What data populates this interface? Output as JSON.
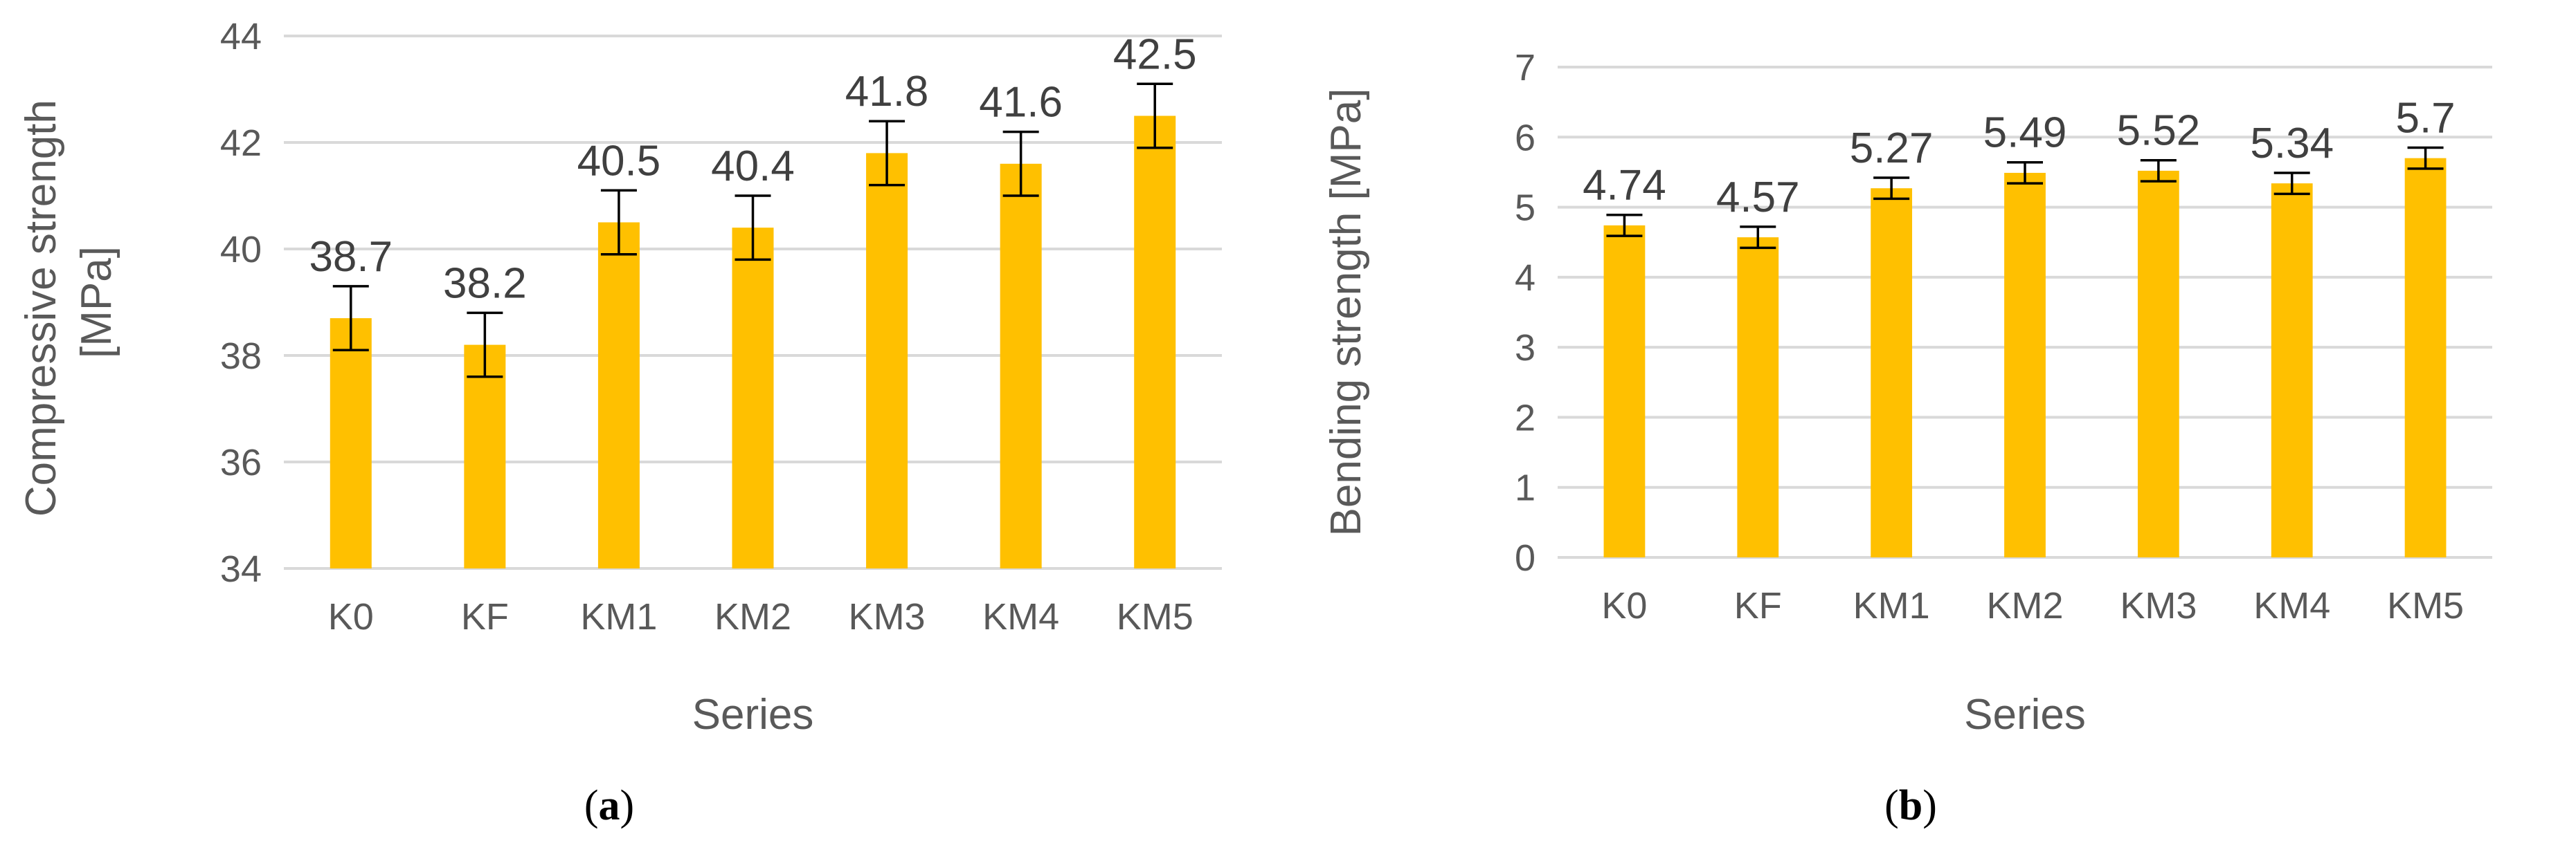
{
  "colors": {
    "bar": "#FFC000",
    "grid": "#D9D9D9",
    "error_bar": "#000000",
    "text": "#595959"
  },
  "chart_data": [
    {
      "type": "bar",
      "panel_letter": "a",
      "categories": [
        "K0",
        "KF",
        "KM1",
        "KM2",
        "KM3",
        "KM4",
        "KM5"
      ],
      "values": [
        38.7,
        38.2,
        40.5,
        40.4,
        41.8,
        41.6,
        42.5
      ],
      "value_labels": [
        "38.7",
        "38.2",
        "40.5",
        "40.4",
        "41.8",
        "41.6",
        "42.5"
      ],
      "error": [
        0.6,
        0.6,
        0.6,
        0.6,
        0.6,
        0.6,
        0.6
      ],
      "xlabel": "Series",
      "ylabel_lines": [
        "Compressive strength",
        "[MPa]"
      ],
      "ylim": [
        34,
        44
      ],
      "yticks": [
        34,
        36,
        38,
        40,
        42,
        44
      ],
      "grid": true
    },
    {
      "type": "bar",
      "panel_letter": "b",
      "categories": [
        "K0",
        "KF",
        "KM1",
        "KM2",
        "KM3",
        "KM4",
        "KM5"
      ],
      "values": [
        4.74,
        4.57,
        5.27,
        5.49,
        5.52,
        5.34,
        5.7
      ],
      "value_labels": [
        "4.74",
        "4.57",
        "5.27",
        "5.49",
        "5.52",
        "5.34",
        "5.7"
      ],
      "error": [
        0.15,
        0.15,
        0.15,
        0.15,
        0.15,
        0.15,
        0.15
      ],
      "xlabel": "Series",
      "ylabel_lines": [
        "Bending strength [MPa]"
      ],
      "ylim": [
        0,
        7
      ],
      "yticks": [
        0,
        1,
        2,
        3,
        4,
        5,
        6,
        7
      ],
      "grid": true
    }
  ]
}
